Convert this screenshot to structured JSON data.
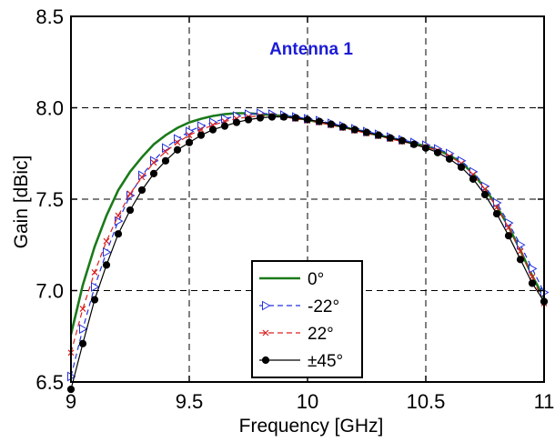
{
  "chart_data": {
    "type": "line",
    "title": "Antenna 1",
    "xlabel": "Frequency [GHz]",
    "ylabel": "Gain  [dBic]",
    "xlim": [
      9,
      11
    ],
    "ylim": [
      6.5,
      8.5
    ],
    "xticks": [
      9,
      9.5,
      10,
      10.5,
      11
    ],
    "xtick_labels": [
      "9",
      "9.5",
      "10",
      "10.5",
      "11"
    ],
    "yticks": [
      6.5,
      7.0,
      7.5,
      8.0,
      8.5
    ],
    "ytick_labels": [
      "6.5",
      "7.0",
      "7.5",
      "8.0",
      "8.5"
    ],
    "grid": true,
    "legend_position": "bottom-center",
    "series": [
      {
        "name": "0°",
        "color": "#1a7a1a",
        "marker": "none",
        "style": "solid",
        "x": [
          9.0,
          9.05,
          9.1,
          9.15,
          9.2,
          9.25,
          9.3,
          9.35,
          9.4,
          9.45,
          9.5,
          9.55,
          9.6,
          9.65,
          9.7,
          9.75,
          9.8,
          9.85,
          9.9,
          9.95,
          10.0,
          10.05,
          10.1,
          10.15,
          10.2,
          10.25,
          10.3,
          10.35,
          10.4,
          10.45,
          10.5,
          10.55,
          10.6,
          10.65,
          10.7,
          10.75,
          10.8,
          10.85,
          10.9,
          10.95,
          11.0
        ],
        "y": [
          6.76,
          7.03,
          7.24,
          7.41,
          7.55,
          7.65,
          7.73,
          7.8,
          7.85,
          7.89,
          7.92,
          7.94,
          7.955,
          7.965,
          7.97,
          7.97,
          7.965,
          7.96,
          7.955,
          7.945,
          7.935,
          7.92,
          7.91,
          7.895,
          7.88,
          7.865,
          7.85,
          7.835,
          7.82,
          7.805,
          7.79,
          7.77,
          7.74,
          7.7,
          7.64,
          7.56,
          7.46,
          7.35,
          7.22,
          7.08,
          6.96
        ]
      },
      {
        "name": "-22°",
        "color": "#2233dd",
        "marker": "triangle-right",
        "style": "dashed",
        "x": [
          9.0,
          9.05,
          9.1,
          9.15,
          9.2,
          9.25,
          9.3,
          9.35,
          9.4,
          9.45,
          9.5,
          9.55,
          9.6,
          9.65,
          9.7,
          9.75,
          9.8,
          9.85,
          9.9,
          9.95,
          10.0,
          10.05,
          10.1,
          10.15,
          10.2,
          10.25,
          10.3,
          10.35,
          10.4,
          10.45,
          10.5,
          10.55,
          10.6,
          10.65,
          10.7,
          10.75,
          10.8,
          10.85,
          10.9,
          10.95,
          11.0
        ],
        "y": [
          6.53,
          6.79,
          7.02,
          7.21,
          7.38,
          7.52,
          7.63,
          7.71,
          7.78,
          7.83,
          7.87,
          7.9,
          7.92,
          7.94,
          7.955,
          7.965,
          7.97,
          7.965,
          7.96,
          7.95,
          7.94,
          7.93,
          7.915,
          7.9,
          7.885,
          7.87,
          7.855,
          7.84,
          7.825,
          7.81,
          7.795,
          7.775,
          7.75,
          7.71,
          7.65,
          7.57,
          7.48,
          7.37,
          7.25,
          7.12,
          6.99
        ]
      },
      {
        "name": "22°",
        "color": "#dd2222",
        "marker": "x",
        "style": "dashed",
        "x": [
          9.0,
          9.05,
          9.1,
          9.15,
          9.2,
          9.25,
          9.3,
          9.35,
          9.4,
          9.45,
          9.5,
          9.55,
          9.6,
          9.65,
          9.7,
          9.75,
          9.8,
          9.85,
          9.9,
          9.95,
          10.0,
          10.05,
          10.1,
          10.15,
          10.2,
          10.25,
          10.3,
          10.35,
          10.4,
          10.45,
          10.5,
          10.55,
          10.6,
          10.65,
          10.7,
          10.75,
          10.8,
          10.85,
          10.9,
          10.95,
          11.0
        ],
        "y": [
          6.66,
          6.9,
          7.1,
          7.27,
          7.41,
          7.53,
          7.62,
          7.7,
          7.76,
          7.81,
          7.85,
          7.88,
          7.905,
          7.925,
          7.94,
          7.95,
          7.955,
          7.955,
          7.95,
          7.94,
          7.93,
          7.92,
          7.905,
          7.89,
          7.875,
          7.86,
          7.845,
          7.83,
          7.815,
          7.8,
          7.785,
          7.765,
          7.735,
          7.695,
          7.635,
          7.555,
          7.455,
          7.345,
          7.215,
          7.075,
          6.93
        ]
      },
      {
        "name": "±45°",
        "color": "#000000",
        "marker": "circle",
        "style": "solid",
        "x": [
          9.0,
          9.05,
          9.1,
          9.15,
          9.2,
          9.25,
          9.3,
          9.35,
          9.4,
          9.45,
          9.5,
          9.55,
          9.6,
          9.65,
          9.7,
          9.75,
          9.8,
          9.85,
          9.9,
          9.95,
          10.0,
          10.05,
          10.1,
          10.15,
          10.2,
          10.25,
          10.3,
          10.35,
          10.4,
          10.45,
          10.5,
          10.55,
          10.6,
          10.65,
          10.7,
          10.75,
          10.8,
          10.85,
          10.9,
          10.95,
          11.0
        ],
        "y": [
          6.46,
          6.71,
          6.95,
          7.14,
          7.31,
          7.44,
          7.55,
          7.64,
          7.71,
          7.77,
          7.81,
          7.85,
          7.88,
          7.9,
          7.92,
          7.935,
          7.945,
          7.95,
          7.95,
          7.945,
          7.935,
          7.925,
          7.91,
          7.895,
          7.88,
          7.865,
          7.85,
          7.835,
          7.82,
          7.8,
          7.78,
          7.755,
          7.72,
          7.675,
          7.61,
          7.525,
          7.42,
          7.3,
          7.17,
          7.04,
          6.94
        ]
      }
    ]
  }
}
